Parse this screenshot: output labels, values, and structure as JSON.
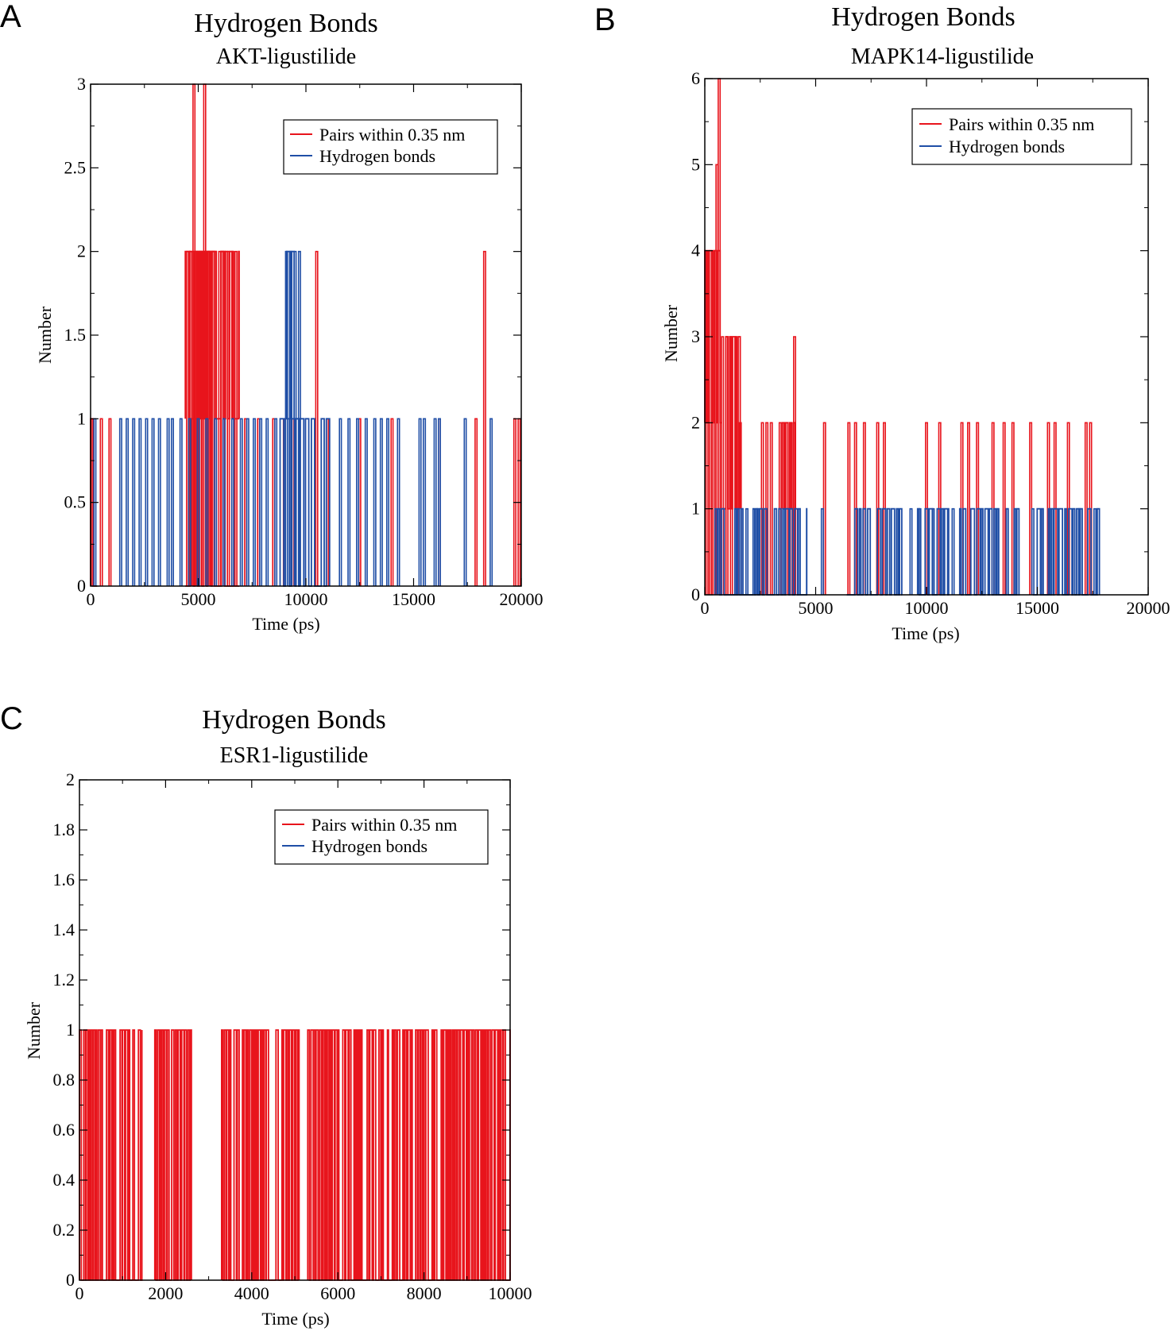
{
  "figure": {
    "panels": [
      {
        "letter": "A",
        "title": "Hydrogen Bonds",
        "subtitle": "AKT-ligustilide"
      },
      {
        "letter": "B",
        "title": "Hydrogen Bonds",
        "subtitle": "MAPK14-ligustilide"
      },
      {
        "letter": "C",
        "title": "Hydrogen Bonds",
        "subtitle": "ESR1-ligustilide"
      }
    ]
  },
  "chart_data": [
    {
      "type": "line",
      "panel": "A",
      "title": "Hydrogen Bonds",
      "subtitle": "AKT-ligustilide",
      "xlabel": "Time (ps)",
      "ylabel": "Number",
      "xlim": [
        0,
        20000
      ],
      "ylim": [
        0,
        3
      ],
      "xticks": [
        0,
        5000,
        10000,
        15000,
        20000
      ],
      "xtick_labels": [
        "0",
        "5000",
        "10000",
        "15000",
        "20000"
      ],
      "yticks": [
        0,
        0.5,
        1,
        1.5,
        2,
        2.5,
        3
      ],
      "ytick_labels": [
        "0",
        "0.5",
        "1",
        "1.5",
        "2",
        "2.5",
        "3"
      ],
      "legend": {
        "position": "top-right",
        "entries": [
          "Pairs within 0.35 nm",
          "Hydrogen bonds"
        ]
      },
      "series": [
        {
          "name": "Pairs within 0.35 nm",
          "color": "#e8141c",
          "peaks": [
            [
              80,
              1
            ],
            [
              500,
              1
            ],
            [
              900,
              1
            ],
            [
              4500,
              2
            ],
            [
              4650,
              2
            ],
            [
              4800,
              3
            ],
            [
              4950,
              2
            ],
            [
              5100,
              2
            ],
            [
              5300,
              3
            ],
            [
              5450,
              2
            ],
            [
              5600,
              2
            ],
            [
              5800,
              2
            ],
            [
              6000,
              2
            ],
            [
              6200,
              2
            ],
            [
              6400,
              2
            ],
            [
              6600,
              2
            ],
            [
              6750,
              2
            ],
            [
              7200,
              1
            ],
            [
              7800,
              1
            ],
            [
              8500,
              1
            ],
            [
              9000,
              1
            ],
            [
              9400,
              1
            ],
            [
              10500,
              2
            ],
            [
              11000,
              1
            ],
            [
              12500,
              1
            ],
            [
              14000,
              1
            ],
            [
              16200,
              1
            ],
            [
              17900,
              1
            ],
            [
              18300,
              2
            ],
            [
              19700,
              1
            ],
            [
              19900,
              1
            ]
          ],
          "dense_regions": [
            {
              "start": 0,
              "end": 300,
              "low": 0,
              "high": 1
            },
            {
              "start": 4400,
              "end": 6900,
              "low": 0,
              "high": 2
            },
            {
              "start": 4400,
              "end": 6900,
              "low": 1,
              "high": 2
            }
          ]
        },
        {
          "name": "Hydrogen bonds",
          "color": "#1f4ea6",
          "peaks": [
            [
              200,
              1
            ],
            [
              1400,
              1
            ],
            [
              1700,
              1
            ],
            [
              2000,
              1
            ],
            [
              2300,
              1
            ],
            [
              2600,
              1
            ],
            [
              2900,
              1
            ],
            [
              3200,
              1
            ],
            [
              3600,
              1
            ],
            [
              3800,
              1
            ],
            [
              4200,
              1
            ],
            [
              4600,
              1
            ],
            [
              5000,
              1
            ],
            [
              5400,
              1
            ],
            [
              5800,
              1
            ],
            [
              6200,
              1
            ],
            [
              6600,
              1
            ],
            [
              7000,
              1
            ],
            [
              7300,
              1
            ],
            [
              7600,
              1
            ],
            [
              7900,
              1
            ],
            [
              8200,
              1
            ],
            [
              8600,
              1
            ],
            [
              9100,
              2
            ],
            [
              9300,
              2
            ],
            [
              9500,
              2
            ],
            [
              9700,
              2
            ],
            [
              11600,
              1
            ],
            [
              12000,
              1
            ],
            [
              12400,
              1
            ],
            [
              12800,
              1
            ],
            [
              13200,
              1
            ],
            [
              13500,
              1
            ],
            [
              13800,
              1
            ],
            [
              14300,
              1
            ],
            [
              15300,
              1
            ],
            [
              15500,
              1
            ],
            [
              16000,
              1
            ],
            [
              16200,
              1
            ],
            [
              17400,
              1
            ],
            [
              18600,
              1
            ]
          ],
          "dense_regions": [
            {
              "start": 8800,
              "end": 11100,
              "low": 0,
              "high": 1
            },
            {
              "start": 9100,
              "end": 9800,
              "low": 1,
              "high": 2
            }
          ]
        }
      ]
    },
    {
      "type": "line",
      "panel": "B",
      "title": "Hydrogen Bonds",
      "subtitle": "MAPK14-ligustilide",
      "xlabel": "Time (ps)",
      "ylabel": "Number",
      "xlim": [
        0,
        20000
      ],
      "ylim": [
        0,
        6
      ],
      "xticks": [
        0,
        5000,
        10000,
        15000,
        20000
      ],
      "xtick_labels": [
        "0",
        "5000",
        "10000",
        "15000",
        "20000"
      ],
      "yticks": [
        0,
        1,
        2,
        3,
        4,
        5,
        6
      ],
      "ytick_labels": [
        "0",
        "1",
        "2",
        "3",
        "4",
        "5",
        "6"
      ],
      "legend": {
        "position": "top-right",
        "entries": [
          "Pairs within 0.35 nm",
          "Hydrogen bonds"
        ]
      },
      "series": [
        {
          "name": "Pairs within 0.35 nm",
          "color": "#e8141c",
          "peaks": [
            [
              100,
              4
            ],
            [
              250,
              4
            ],
            [
              400,
              4
            ],
            [
              550,
              5
            ],
            [
              650,
              6
            ],
            [
              800,
              3
            ],
            [
              1000,
              3
            ],
            [
              1200,
              3
            ],
            [
              1400,
              3
            ],
            [
              1600,
              2
            ],
            [
              2600,
              2
            ],
            [
              2800,
              2
            ],
            [
              3000,
              2
            ],
            [
              3400,
              2
            ],
            [
              3700,
              2
            ],
            [
              3900,
              2
            ],
            [
              4050,
              3
            ],
            [
              5400,
              2
            ],
            [
              6500,
              2
            ],
            [
              6800,
              2
            ],
            [
              7200,
              2
            ],
            [
              7800,
              2
            ],
            [
              8100,
              2
            ],
            [
              10000,
              2
            ],
            [
              10600,
              2
            ],
            [
              11600,
              2
            ],
            [
              11900,
              2
            ],
            [
              12300,
              2
            ],
            [
              13000,
              2
            ],
            [
              13500,
              2
            ],
            [
              13900,
              2
            ],
            [
              14700,
              2
            ],
            [
              15500,
              2
            ],
            [
              15800,
              2
            ],
            [
              16400,
              2
            ],
            [
              17200,
              2
            ],
            [
              17400,
              2
            ]
          ],
          "dense_regions": [
            {
              "start": 0,
              "end": 750,
              "low": 2,
              "high": 4
            },
            {
              "start": 750,
              "end": 1600,
              "low": 1,
              "high": 3
            },
            {
              "start": 3500,
              "end": 4100,
              "low": 1,
              "high": 2
            }
          ]
        },
        {
          "name": "Hydrogen bonds",
          "color": "#1f4ea6",
          "peaks": [
            [
              500,
              1
            ],
            [
              1900,
              1
            ],
            [
              2400,
              1
            ],
            [
              5300,
              1
            ],
            [
              9300,
              1
            ],
            [
              9700,
              1
            ],
            [
              10300,
              1
            ],
            [
              11200,
              1
            ],
            [
              14800,
              1
            ],
            [
              15600,
              1
            ],
            [
              16900,
              1
            ],
            [
              17600,
              1
            ]
          ],
          "dense_regions": [
            {
              "start": 600,
              "end": 4600,
              "low": 0,
              "high": 1
            },
            {
              "start": 6400,
              "end": 8900,
              "low": 0,
              "high": 1
            },
            {
              "start": 9600,
              "end": 11000,
              "low": 0,
              "high": 1
            },
            {
              "start": 11500,
              "end": 14200,
              "low": 0,
              "high": 1
            },
            {
              "start": 14800,
              "end": 17800,
              "low": 0,
              "high": 1
            }
          ]
        }
      ]
    },
    {
      "type": "line",
      "panel": "C",
      "title": "Hydrogen Bonds",
      "subtitle": "ESR1-ligustilide",
      "xlabel": "Time (ps)",
      "ylabel": "Number",
      "xlim": [
        0,
        10000
      ],
      "ylim": [
        0,
        2
      ],
      "xticks": [
        0,
        2000,
        4000,
        6000,
        8000,
        10000
      ],
      "xtick_labels": [
        "0",
        "2000",
        "4000",
        "6000",
        "8000",
        "10000"
      ],
      "yticks": [
        0,
        0.2,
        0.4,
        0.6,
        0.8,
        1,
        1.2,
        1.4,
        1.6,
        1.8,
        2
      ],
      "ytick_labels": [
        "0",
        "0.2",
        "0.4",
        "0.6",
        "0.8",
        "1",
        "1.2",
        "1.4",
        "1.6",
        "1.8",
        "2"
      ],
      "legend": {
        "position": "top-right",
        "entries": [
          "Pairs within 0.35 nm",
          "Hydrogen bonds"
        ]
      },
      "series": [
        {
          "name": "Pairs within 0.35 nm",
          "color": "#e8141c",
          "peaks": [],
          "dense_regions": [
            {
              "start": 0,
              "end": 1450,
              "low": 0,
              "high": 1
            },
            {
              "start": 1750,
              "end": 2600,
              "low": 0,
              "high": 1
            },
            {
              "start": 3300,
              "end": 5100,
              "low": 0,
              "high": 1
            },
            {
              "start": 5300,
              "end": 10000,
              "low": 0,
              "high": 1
            }
          ]
        },
        {
          "name": "Hydrogen bonds",
          "color": "#1f4ea6",
          "peaks": [],
          "dense_regions": []
        }
      ]
    }
  ]
}
